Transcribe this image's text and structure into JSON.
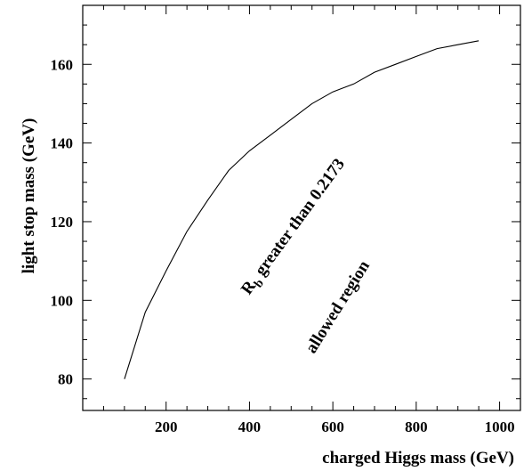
{
  "chart_data": {
    "type": "line",
    "xlabel": "charged Higgs mass (GeV)",
    "ylabel": "light stop mass (GeV)",
    "xlim": [
      0,
      1050
    ],
    "ylim": [
      72,
      175
    ],
    "grid": false,
    "x_ticks": [
      200,
      400,
      600,
      800,
      1000
    ],
    "y_ticks": [
      80,
      100,
      120,
      140,
      160
    ],
    "series": [
      {
        "x": [
          100,
          150,
          200,
          250,
          300,
          350,
          400,
          450,
          500,
          550,
          600,
          650,
          700,
          750,
          800,
          850,
          900,
          950
        ],
        "y": [
          80,
          97,
          107.5,
          117.5,
          125.5,
          133,
          138,
          142,
          146,
          150,
          153,
          155,
          158,
          160,
          162,
          164,
          165,
          166
        ]
      }
    ],
    "annotations": {
      "rb_main": "R",
      "rb_sub": "b",
      "rb_rest": " greater than 0.2173",
      "allowed": "allowed region"
    }
  }
}
